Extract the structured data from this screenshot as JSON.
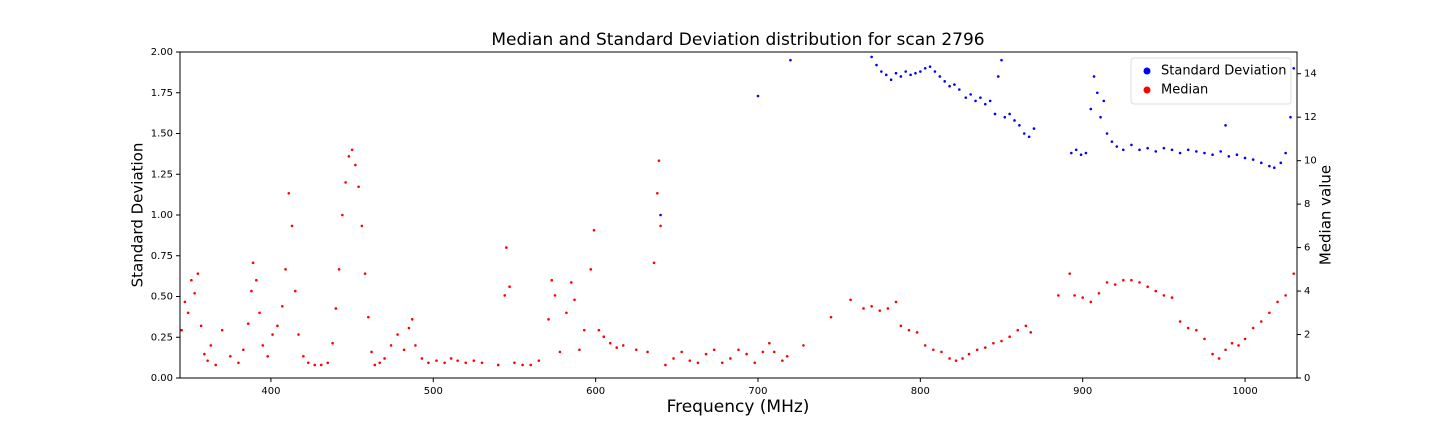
{
  "chart_data": {
    "type": "scatter",
    "title": "Median and Standard Deviation distribution for scan 2796",
    "x_label": "Frequency (MHz)",
    "y_label": "Standard Deviation",
    "y2_label": "Median value",
    "xlim": [
      344,
      1032
    ],
    "xticks": [
      400,
      500,
      600,
      700,
      800,
      900,
      1000
    ],
    "ylim": [
      0,
      2
    ],
    "yticks": [
      {
        "value": 0,
        "label": "0.00"
      },
      {
        "value": 0.25,
        "label": "0.25"
      },
      {
        "value": 0.5,
        "label": "0.50"
      },
      {
        "value": 0.75,
        "label": "0.75"
      },
      {
        "value": 1,
        "label": "1.00"
      },
      {
        "value": 1.25,
        "label": "1.25"
      },
      {
        "value": 1.5,
        "label": "1.50"
      },
      {
        "value": 1.75,
        "label": "1.75"
      },
      {
        "value": 2,
        "label": "2.00"
      }
    ],
    "y2lim": [
      0,
      15
    ],
    "y2ticks": [
      0,
      2,
      4,
      6,
      8,
      10,
      12,
      14
    ],
    "legend": "upper right",
    "series": [
      {
        "name": "Standard Deviation",
        "color": "#0000ff",
        "x": [
          640,
          700,
          720,
          770,
          773,
          776,
          779,
          782,
          785,
          788,
          791,
          794,
          797,
          800,
          803,
          806,
          809,
          812,
          815,
          818,
          821,
          824,
          828,
          831,
          834,
          837,
          840,
          843,
          846,
          848,
          850,
          852,
          855,
          858,
          861,
          864,
          867,
          870,
          893,
          896,
          899,
          902,
          905,
          907,
          909,
          911,
          913,
          915,
          918,
          921,
          925,
          930,
          935,
          940,
          945,
          950,
          955,
          960,
          965,
          970,
          975,
          980,
          985,
          988,
          990,
          995,
          1000,
          1005,
          1010,
          1015,
          1018,
          1022,
          1025,
          1028,
          1030
        ],
        "values": [
          1.0,
          1.73,
          1.95,
          1.97,
          1.92,
          1.88,
          1.86,
          1.83,
          1.87,
          1.85,
          1.88,
          1.86,
          1.87,
          1.88,
          1.9,
          1.91,
          1.88,
          1.85,
          1.82,
          1.79,
          1.8,
          1.77,
          1.72,
          1.74,
          1.7,
          1.72,
          1.68,
          1.7,
          1.62,
          1.85,
          1.95,
          1.6,
          1.62,
          1.58,
          1.55,
          1.5,
          1.48,
          1.53,
          1.38,
          1.4,
          1.37,
          1.38,
          1.65,
          1.85,
          1.75,
          1.6,
          1.7,
          1.5,
          1.45,
          1.42,
          1.4,
          1.43,
          1.4,
          1.41,
          1.39,
          1.41,
          1.4,
          1.38,
          1.4,
          1.39,
          1.38,
          1.37,
          1.39,
          1.55,
          1.36,
          1.37,
          1.35,
          1.34,
          1.32,
          1.3,
          1.29,
          1.32,
          1.38,
          1.6,
          1.9
        ]
      },
      {
        "name": "Median",
        "color": "#ff0000",
        "axis": "y2",
        "x": [
          345,
          347,
          349,
          351,
          353,
          355,
          357,
          359,
          361,
          363,
          366,
          370,
          375,
          380,
          383,
          386,
          388,
          389,
          391,
          393,
          395,
          398,
          401,
          404,
          407,
          409,
          411,
          413,
          415,
          417,
          420,
          423,
          427,
          431,
          435,
          438,
          440,
          442,
          444,
          446,
          448,
          450,
          452,
          454,
          456,
          458,
          460,
          462,
          464,
          467,
          470,
          474,
          478,
          482,
          485,
          487,
          489,
          493,
          497,
          502,
          507,
          511,
          515,
          520,
          525,
          530,
          540,
          544,
          545,
          547,
          550,
          555,
          560,
          565,
          571,
          573,
          575,
          578,
          582,
          585,
          587,
          590,
          593,
          597,
          599,
          602,
          605,
          609,
          613,
          617,
          625,
          632,
          636,
          638,
          639,
          640,
          643,
          648,
          653,
          658,
          663,
          668,
          673,
          678,
          683,
          688,
          693,
          698,
          703,
          707,
          710,
          715,
          718,
          728,
          745,
          757,
          765,
          770,
          775,
          780,
          785,
          788,
          793,
          798,
          803,
          808,
          813,
          818,
          822,
          826,
          830,
          835,
          840,
          845,
          850,
          855,
          860,
          865,
          868,
          885,
          892,
          895,
          900,
          905,
          910,
          915,
          920,
          925,
          930,
          935,
          940,
          945,
          950,
          955,
          960,
          965,
          970,
          975,
          980,
          984,
          988,
          992,
          996,
          1000,
          1005,
          1010,
          1015,
          1020,
          1025,
          1030
        ],
        "values": [
          2.2,
          3.5,
          3.0,
          4.5,
          3.9,
          4.8,
          2.4,
          1.1,
          0.8,
          1.5,
          0.6,
          2.2,
          1.0,
          0.7,
          1.3,
          2.5,
          4.0,
          5.3,
          4.5,
          3.0,
          1.5,
          1.0,
          2.0,
          2.4,
          3.3,
          5.0,
          8.5,
          7.0,
          4.0,
          2.0,
          1.0,
          0.7,
          0.6,
          0.6,
          0.7,
          1.6,
          3.2,
          5.0,
          7.5,
          9.0,
          10.2,
          10.5,
          9.8,
          8.8,
          7.0,
          4.8,
          2.8,
          1.2,
          0.6,
          0.7,
          0.9,
          1.5,
          2.0,
          1.3,
          2.3,
          2.7,
          1.5,
          0.9,
          0.7,
          0.8,
          0.7,
          0.9,
          0.8,
          0.7,
          0.8,
          0.7,
          0.6,
          3.8,
          6.0,
          4.2,
          0.7,
          0.6,
          0.6,
          0.8,
          2.7,
          4.5,
          3.8,
          1.2,
          3.0,
          4.4,
          3.6,
          1.3,
          2.2,
          5.0,
          6.8,
          2.2,
          1.9,
          1.6,
          1.4,
          1.5,
          1.3,
          1.2,
          5.3,
          8.5,
          10.0,
          7.0,
          0.6,
          0.9,
          1.2,
          0.8,
          0.7,
          1.1,
          1.3,
          0.7,
          0.9,
          1.3,
          1.1,
          0.7,
          1.2,
          1.6,
          1.2,
          0.8,
          1.0,
          1.5,
          2.8,
          3.6,
          3.2,
          3.3,
          3.1,
          3.2,
          3.5,
          2.4,
          2.2,
          2.1,
          1.5,
          1.3,
          1.2,
          0.9,
          0.8,
          0.9,
          1.1,
          1.3,
          1.4,
          1.6,
          1.7,
          1.9,
          2.2,
          2.4,
          2.1,
          3.8,
          4.8,
          3.8,
          3.7,
          3.5,
          3.9,
          4.4,
          4.3,
          4.5,
          4.5,
          4.4,
          4.2,
          4.0,
          3.8,
          3.7,
          2.6,
          2.3,
          2.2,
          1.8,
          1.1,
          0.9,
          1.3,
          1.6,
          1.5,
          1.8,
          2.3,
          2.6,
          3.0,
          3.5,
          3.8,
          4.8
        ]
      }
    ]
  }
}
